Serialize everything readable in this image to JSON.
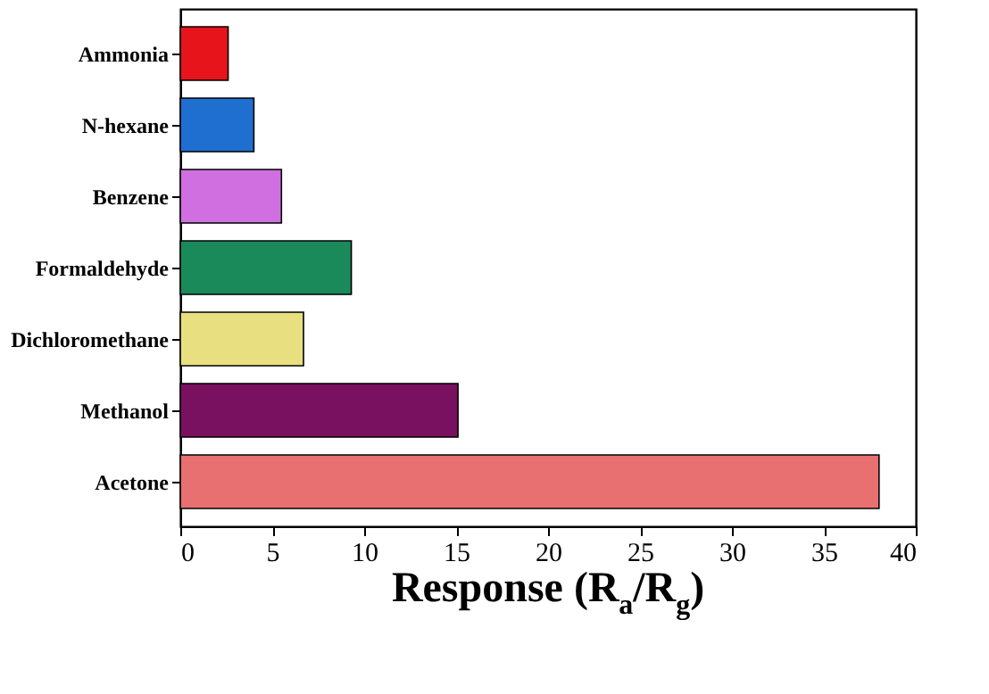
{
  "chart_data": {
    "type": "bar",
    "orientation": "horizontal",
    "xlabel": "Response (R$_{a}$/R$_{g}$)",
    "categories": [
      "Ammonia",
      "N-hexane",
      "Benzene",
      "Formaldehyde",
      "Dichloromethane",
      "Methanol",
      "Acetone"
    ],
    "values": [
      2.6,
      4.0,
      5.5,
      9.3,
      6.7,
      15.1,
      38.0
    ],
    "colors": [
      "#e8141c",
      "#1f6fd0",
      "#d070e0",
      "#1a8a5a",
      "#e8e080",
      "#7a1060",
      "#e87070"
    ],
    "xlim": [
      0,
      40
    ],
    "xticks": [
      0,
      5,
      10,
      15,
      20,
      25,
      30,
      35,
      40
    ],
    "grid": false
  }
}
